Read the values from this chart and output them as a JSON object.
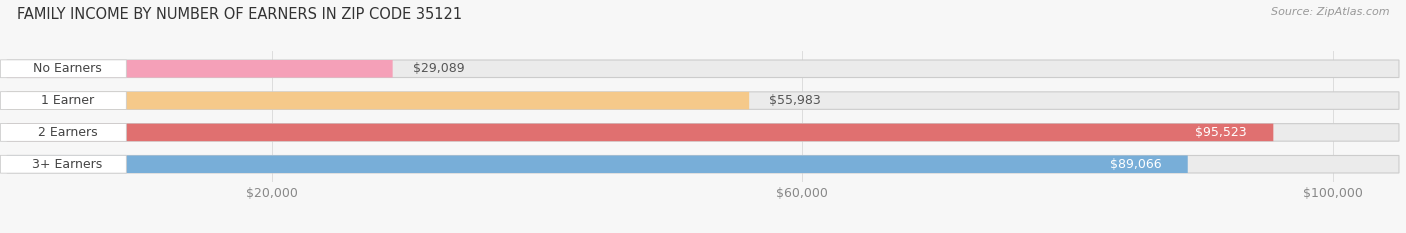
{
  "title": "FAMILY INCOME BY NUMBER OF EARNERS IN ZIP CODE 35121",
  "source": "Source: ZipAtlas.com",
  "categories": [
    "No Earners",
    "1 Earner",
    "2 Earners",
    "3+ Earners"
  ],
  "values": [
    29089,
    55983,
    95523,
    89066
  ],
  "bar_colors": [
    "#f5a0b8",
    "#f5c98a",
    "#e07070",
    "#78aed8"
  ],
  "bar_bg_color": "#ebebeb",
  "bar_edge_color": "#cccccc",
  "label_bg_colors": [
    "#f5a0b8",
    "#f5c98a",
    "#e07070",
    "#78aed8"
  ],
  "value_colors": [
    "#555555",
    "#555555",
    "#ffffff",
    "#ffffff"
  ],
  "xlim_min": 0,
  "xlim_max": 105000,
  "xticks": [
    20000,
    60000,
    100000
  ],
  "xtick_labels": [
    "$20,000",
    "$60,000",
    "$100,000"
  ],
  "background_color": "#f7f7f7",
  "title_fontsize": 10.5,
  "tick_fontsize": 9,
  "label_fontsize": 9,
  "value_fontsize": 9,
  "bar_height": 0.55
}
